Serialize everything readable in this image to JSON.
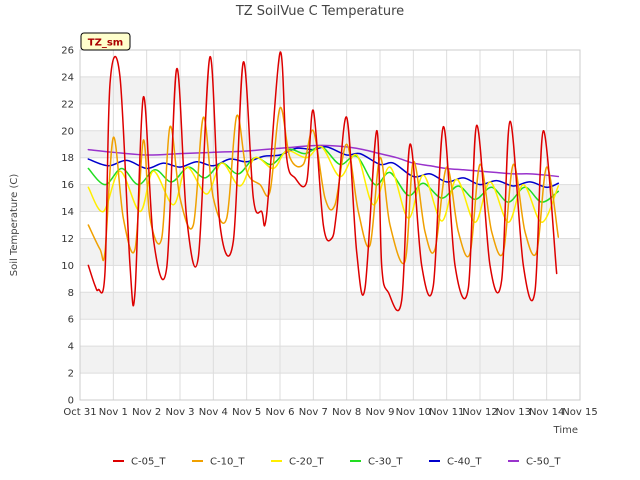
{
  "chart_data": {
    "type": "line",
    "title": "TZ SoilVue C Temperature",
    "xlabel": "Time",
    "ylabel": "Soil Temperature (C)",
    "badge": "TZ_sm",
    "ylim": [
      0,
      26
    ],
    "yticks": [
      0,
      2,
      4,
      6,
      8,
      10,
      12,
      14,
      16,
      18,
      20,
      22,
      24,
      26
    ],
    "xlim": [
      0,
      15
    ],
    "xticks": [
      {
        "pos": 0,
        "label": "Oct 31"
      },
      {
        "pos": 1,
        "label": "Nov 1"
      },
      {
        "pos": 2,
        "label": "Nov 2"
      },
      {
        "pos": 3,
        "label": "Nov 3"
      },
      {
        "pos": 4,
        "label": "Nov 4"
      },
      {
        "pos": 5,
        "label": "Nov 5"
      },
      {
        "pos": 6,
        "label": "Nov 6"
      },
      {
        "pos": 7,
        "label": "Nov 7"
      },
      {
        "pos": 8,
        "label": "Nov 8"
      },
      {
        "pos": 9,
        "label": "Nov 9"
      },
      {
        "pos": 10,
        "label": "Nov 10"
      },
      {
        "pos": 11,
        "label": "Nov 11"
      },
      {
        "pos": 12,
        "label": "Nov 12"
      },
      {
        "pos": 13,
        "label": "Nov 13"
      },
      {
        "pos": 14,
        "label": "Nov 14"
      },
      {
        "pos": 15,
        "label": "Nov 15"
      }
    ],
    "grid": true,
    "legend_position": "bottom",
    "series": [
      {
        "name": "C-05_T",
        "color": "#dd0000",
        "x": [
          0.25,
          0.45,
          0.55,
          0.75,
          0.9,
          1.2,
          1.5,
          1.65,
          1.9,
          2.2,
          2.6,
          2.9,
          3.2,
          3.55,
          3.9,
          4.2,
          4.6,
          4.9,
          5.2,
          5.45,
          5.6,
          6.0,
          6.2,
          6.45,
          6.8,
          7.0,
          7.3,
          7.55,
          7.7,
          8.0,
          8.3,
          8.55,
          8.9,
          9.05,
          9.25,
          9.65,
          9.9,
          10.25,
          10.6,
          10.9,
          11.25,
          11.65,
          11.9,
          12.3,
          12.65,
          12.9,
          13.3,
          13.65,
          13.9,
          14.3
        ],
        "y": [
          10.0,
          8.5,
          8.2,
          9.5,
          23.5,
          24.0,
          10.0,
          8.0,
          22.5,
          12.0,
          9.8,
          24.6,
          13.5,
          10.6,
          25.5,
          13.0,
          11.8,
          25.1,
          15.0,
          14.0,
          13.8,
          25.8,
          18.0,
          16.5,
          16.2,
          21.5,
          13.0,
          12.0,
          14.0,
          21.0,
          11.0,
          8.3,
          20.0,
          10.0,
          8.0,
          7.4,
          19.0,
          10.0,
          8.5,
          20.3,
          10.0,
          8.3,
          20.4,
          10.0,
          8.9,
          20.7,
          10.0,
          8.1,
          20.0,
          9.4
        ]
      },
      {
        "name": "C-10_T",
        "color": "#f0a000",
        "x": [
          0.25,
          0.6,
          0.75,
          1.0,
          1.3,
          1.65,
          1.9,
          2.1,
          2.45,
          2.7,
          3.0,
          3.4,
          3.7,
          4.0,
          4.4,
          4.7,
          5.0,
          5.4,
          5.7,
          6.0,
          6.3,
          6.7,
          7.0,
          7.35,
          7.65,
          8.0,
          8.35,
          8.7,
          9.0,
          9.3,
          9.75,
          10.0,
          10.35,
          10.65,
          11.0,
          11.35,
          11.7,
          12.0,
          12.35,
          12.7,
          13.0,
          13.35,
          13.7,
          14.0,
          14.35
        ],
        "y": [
          13.0,
          11.2,
          11.0,
          19.5,
          13.5,
          11.2,
          19.3,
          13.5,
          12.0,
          20.3,
          15.0,
          13.0,
          21.0,
          15.0,
          13.5,
          21.1,
          17.0,
          16.0,
          15.5,
          21.7,
          18.0,
          17.5,
          20.0,
          15.0,
          14.5,
          19.0,
          14.0,
          11.5,
          18.0,
          13.0,
          10.3,
          17.7,
          12.5,
          11.2,
          17.3,
          12.5,
          10.9,
          17.5,
          12.5,
          11.0,
          17.5,
          12.5,
          11.0,
          17.3,
          12.1
        ]
      },
      {
        "name": "C-20_T",
        "color": "#ffee00",
        "x": [
          0.25,
          0.7,
          1.2,
          1.8,
          2.2,
          2.8,
          3.2,
          3.8,
          4.25,
          4.8,
          5.25,
          5.8,
          6.2,
          6.8,
          7.25,
          7.8,
          8.3,
          8.8,
          9.3,
          9.85,
          10.3,
          10.85,
          11.3,
          11.85,
          12.3,
          12.85,
          13.3,
          13.85,
          14.35
        ],
        "y": [
          15.8,
          14.0,
          17.0,
          14.0,
          17.0,
          14.5,
          17.3,
          15.3,
          17.6,
          15.9,
          18.0,
          17.2,
          18.5,
          18.0,
          18.8,
          16.6,
          18.2,
          14.5,
          17.3,
          13.5,
          16.7,
          13.3,
          16.4,
          13.2,
          16.2,
          13.2,
          16.0,
          13.2,
          15.9
        ]
      },
      {
        "name": "C-30_T",
        "color": "#22dd22",
        "x": [
          0.25,
          0.75,
          1.25,
          1.75,
          2.25,
          2.75,
          3.25,
          3.75,
          4.25,
          4.75,
          5.25,
          5.75,
          6.25,
          6.75,
          7.25,
          7.8,
          8.3,
          8.85,
          9.3,
          9.85,
          10.3,
          10.85,
          11.35,
          11.85,
          12.35,
          12.85,
          13.35,
          13.85,
          14.35
        ],
        "y": [
          17.2,
          16.0,
          17.2,
          16.0,
          17.1,
          16.2,
          17.3,
          16.5,
          17.6,
          16.8,
          18.0,
          17.5,
          18.6,
          18.3,
          18.8,
          17.5,
          18.1,
          16.0,
          16.9,
          15.2,
          16.1,
          15.0,
          15.9,
          14.9,
          15.8,
          14.7,
          15.8,
          14.7,
          15.5
        ]
      },
      {
        "name": "C-40_T",
        "color": "#0000cc",
        "x": [
          0.25,
          0.85,
          1.4,
          2.0,
          2.5,
          3.0,
          3.5,
          4.0,
          4.5,
          5.0,
          5.5,
          6.0,
          6.5,
          7.0,
          7.4,
          8.0,
          8.4,
          9.0,
          9.4,
          10.0,
          10.5,
          11.0,
          11.5,
          12.0,
          12.5,
          13.0,
          13.5,
          14.0,
          14.35
        ],
        "y": [
          17.9,
          17.4,
          17.8,
          17.2,
          17.6,
          17.3,
          17.7,
          17.4,
          17.9,
          17.7,
          18.1,
          18.2,
          18.7,
          18.6,
          18.8,
          18.2,
          18.3,
          17.5,
          17.6,
          16.6,
          16.8,
          16.2,
          16.5,
          16.0,
          16.3,
          15.9,
          16.2,
          15.8,
          16.1
        ]
      },
      {
        "name": "C-50_T",
        "color": "#9933cc",
        "x": [
          0.25,
          1.0,
          2.0,
          3.0,
          4.0,
          5.0,
          6.0,
          6.5,
          7.0,
          7.5,
          8.0,
          8.5,
          9.0,
          9.5,
          10.0,
          10.5,
          11.0,
          11.5,
          12.0,
          12.5,
          13.0,
          13.5,
          14.0,
          14.35
        ],
        "y": [
          18.6,
          18.4,
          18.2,
          18.3,
          18.4,
          18.5,
          18.7,
          18.8,
          18.9,
          18.9,
          18.8,
          18.6,
          18.3,
          18.0,
          17.6,
          17.4,
          17.2,
          17.1,
          17.0,
          16.9,
          16.8,
          16.8,
          16.7,
          16.6
        ]
      }
    ]
  }
}
